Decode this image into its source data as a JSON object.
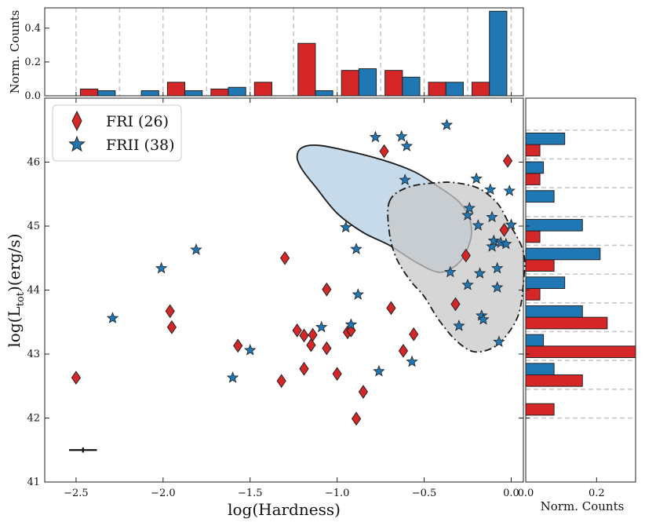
{
  "chart_data": {
    "type": "scatter",
    "main": {
      "xlabel": "log(Hardness)",
      "ylabel_prefix": "log(L",
      "ylabel_sub": "tot",
      "ylabel_suffix": ")(erg/s)",
      "xlim": [
        -2.68,
        0.07
      ],
      "ylim": [
        41.0,
        47.0
      ],
      "xticks": [
        -2.5,
        -2.0,
        -1.5,
        -1.0,
        -0.5,
        0.0
      ],
      "xtick_labels": [
        "−2.5",
        "−2.0",
        "−1.5",
        "−1.0",
        "−0.5",
        "0.0"
      ],
      "yticks": [
        41,
        42,
        43,
        44,
        45,
        46
      ],
      "ytick_labels": [
        "41",
        "42",
        "43",
        "44",
        "45",
        "46"
      ],
      "legend": [
        {
          "label": "FRI (26)",
          "marker": "diamond",
          "color": "#d62728"
        },
        {
          "label": "FRII (38)",
          "marker": "star",
          "color": "#1f77b4"
        }
      ],
      "series": [
        {
          "name": "FRI",
          "color": "#d62728",
          "marker": "diamond",
          "points": [
            [
              -2.5,
              42.63
            ],
            [
              -1.96,
              43.67
            ],
            [
              -1.95,
              43.42
            ],
            [
              -1.57,
              43.13
            ],
            [
              -1.3,
              44.5
            ],
            [
              -1.32,
              42.58
            ],
            [
              -1.23,
              43.37
            ],
            [
              -1.19,
              43.29
            ],
            [
              -1.19,
              42.77
            ],
            [
              -1.15,
              43.14
            ],
            [
              -1.14,
              43.3
            ],
            [
              -1.06,
              44.01
            ],
            [
              -1.06,
              43.09
            ],
            [
              -1.0,
              42.69
            ],
            [
              -0.94,
              43.34
            ],
            [
              -0.92,
              43.37
            ],
            [
              -0.89,
              41.99
            ],
            [
              -0.85,
              42.41
            ],
            [
              -0.73,
              46.17
            ],
            [
              -0.69,
              43.72
            ],
            [
              -0.62,
              43.05
            ],
            [
              -0.56,
              43.31
            ],
            [
              -0.32,
              43.78
            ],
            [
              -0.26,
              44.54
            ],
            [
              -0.04,
              44.94
            ],
            [
              -0.02,
              46.02
            ]
          ]
        },
        {
          "name": "FRII",
          "color": "#1f77b4",
          "marker": "star",
          "points": [
            [
              -2.29,
              43.56
            ],
            [
              -2.01,
              44.34
            ],
            [
              -1.81,
              44.63
            ],
            [
              -1.6,
              42.63
            ],
            [
              -1.5,
              43.06
            ],
            [
              -1.09,
              43.42
            ],
            [
              -0.95,
              44.98
            ],
            [
              -0.92,
              43.46
            ],
            [
              -0.89,
              44.64
            ],
            [
              -0.88,
              43.93
            ],
            [
              -0.78,
              46.39
            ],
            [
              -0.76,
              42.73
            ],
            [
              -0.63,
              46.4
            ],
            [
              -0.6,
              46.25
            ],
            [
              -0.61,
              45.72
            ],
            [
              -0.57,
              42.88
            ],
            [
              -0.37,
              46.58
            ],
            [
              -0.35,
              44.28
            ],
            [
              -0.3,
              43.44
            ],
            [
              -0.25,
              45.17
            ],
            [
              -0.24,
              45.28
            ],
            [
              -0.25,
              44.08
            ],
            [
              -0.2,
              45.74
            ],
            [
              -0.19,
              45.01
            ],
            [
              -0.18,
              44.26
            ],
            [
              -0.17,
              43.6
            ],
            [
              -0.16,
              43.54
            ],
            [
              -0.12,
              45.57
            ],
            [
              -0.11,
              45.14
            ],
            [
              -0.11,
              44.68
            ],
            [
              -0.1,
              44.77
            ],
            [
              -0.08,
              44.04
            ],
            [
              -0.08,
              44.34
            ],
            [
              -0.07,
              43.19
            ],
            [
              -0.06,
              44.74
            ],
            [
              -0.03,
              44.72
            ],
            [
              -0.01,
              45.55
            ],
            [
              0.0,
              45.02
            ]
          ]
        }
      ],
      "error_bar": {
        "x": -2.46,
        "y": 41.5,
        "xerr": 0.08,
        "yerr": 0.04
      },
      "contours": [
        {
          "name": "FRII-density",
          "fill": "#b3cde3",
          "style": "solid",
          "points": [
            [
              -1.23,
              46.08
            ],
            [
              -1.2,
              46.23
            ],
            [
              -1.1,
              46.26
            ],
            [
              -0.9,
              46.15
            ],
            [
              -0.7,
              46.0
            ],
            [
              -0.55,
              45.84
            ],
            [
              -0.42,
              45.62
            ],
            [
              -0.3,
              45.38
            ],
            [
              -0.24,
              45.12
            ],
            [
              -0.23,
              44.84
            ],
            [
              -0.27,
              44.54
            ],
            [
              -0.33,
              44.36
            ],
            [
              -0.42,
              44.28
            ],
            [
              -0.55,
              44.44
            ],
            [
              -0.7,
              44.7
            ],
            [
              -0.85,
              44.9
            ],
            [
              -1.0,
              45.2
            ],
            [
              -1.12,
              45.6
            ],
            [
              -1.2,
              45.88
            ]
          ]
        },
        {
          "name": "FRI-density",
          "fill": "#c8c8c8",
          "style": "dashdot",
          "points": [
            [
              -0.7,
              45.38
            ],
            [
              -0.6,
              45.6
            ],
            [
              -0.42,
              45.68
            ],
            [
              -0.3,
              45.67
            ],
            [
              -0.18,
              45.58
            ],
            [
              -0.08,
              45.36
            ],
            [
              -0.02,
              45.08
            ],
            [
              0.07,
              44.6
            ],
            [
              0.07,
              44.1
            ],
            [
              0.04,
              43.6
            ],
            [
              -0.04,
              43.25
            ],
            [
              -0.12,
              43.08
            ],
            [
              -0.22,
              43.04
            ],
            [
              -0.32,
              43.22
            ],
            [
              -0.42,
              43.55
            ],
            [
              -0.5,
              43.9
            ],
            [
              -0.58,
              44.15
            ],
            [
              -0.66,
              44.5
            ],
            [
              -0.7,
              44.9
            ]
          ]
        }
      ]
    },
    "top_hist": {
      "ylabel": "Norm. Counts",
      "ylim": [
        0,
        0.52
      ],
      "yticks": [
        0.0,
        0.2,
        0.4
      ],
      "ytick_labels": [
        "0.0",
        "0.2",
        "0.4"
      ],
      "bin_edges": [
        -2.5,
        -2.25,
        -2.0,
        -1.75,
        -1.5,
        -1.25,
        -1.0,
        -0.75,
        -0.5,
        -0.25,
        0.0
      ],
      "FRI": [
        0.04,
        0.0,
        0.08,
        0.04,
        0.08,
        0.31,
        0.15,
        0.15,
        0.08,
        0.08
      ],
      "FRII": [
        0.03,
        0.03,
        0.03,
        0.05,
        0.0,
        0.03,
        0.16,
        0.11,
        0.08,
        0.5
      ]
    },
    "right_hist": {
      "xlabel": "Norm. Counts",
      "xlim": [
        0,
        0.31
      ],
      "xticks": [
        0.0,
        0.2
      ],
      "xtick_labels": [
        "0.0",
        "0.2"
      ],
      "bin_edges": [
        42.0,
        42.45,
        42.9,
        43.35,
        43.8,
        44.25,
        44.7,
        45.15,
        45.6,
        46.05,
        46.5
      ],
      "FRI": [
        0.08,
        0.16,
        0.31,
        0.23,
        0.04,
        0.08,
        0.04,
        0.0,
        0.04,
        0.04
      ],
      "FRII": [
        0.0,
        0.08,
        0.05,
        0.16,
        0.11,
        0.21,
        0.16,
        0.08,
        0.05,
        0.11
      ]
    }
  }
}
